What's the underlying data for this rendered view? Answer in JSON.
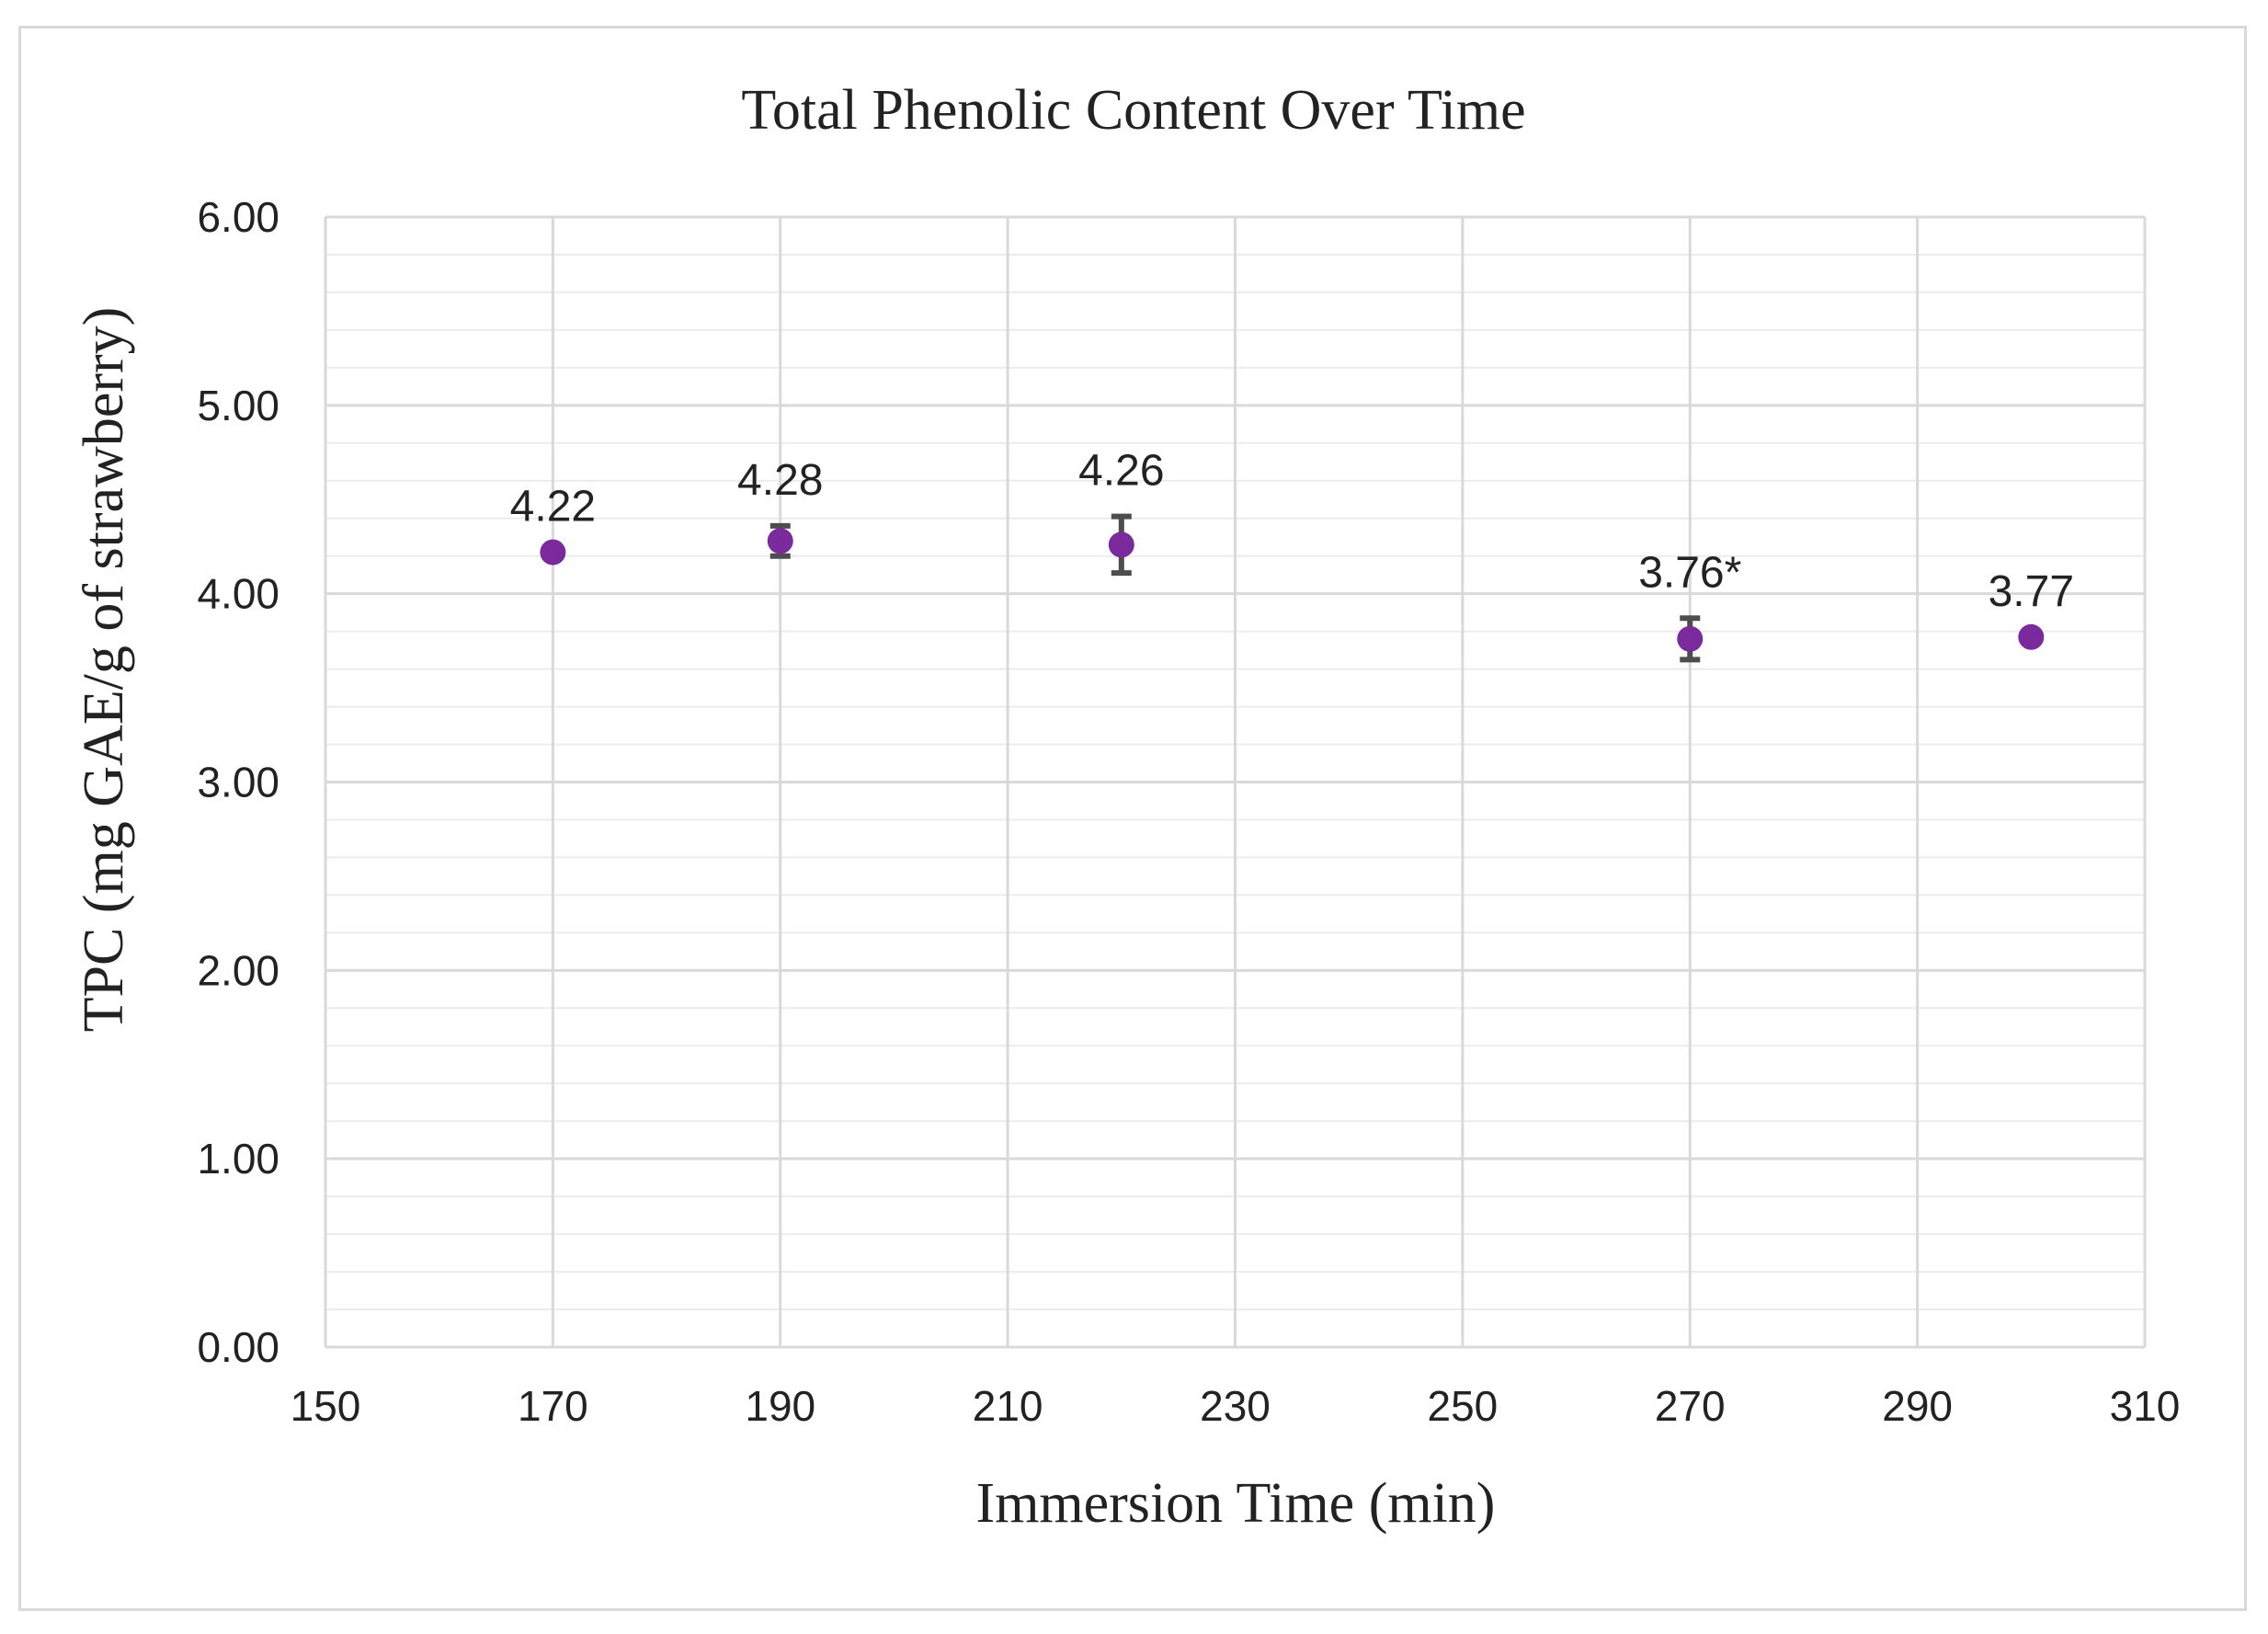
{
  "chart_data": {
    "type": "scatter",
    "title": "Total Phenolic Content Over Time",
    "xlabel": "Immersion Time (min)",
    "ylabel": "TPC (mg GAE/g of strawberry)",
    "xlim": [
      150,
      310
    ],
    "ylim": [
      0,
      6
    ],
    "x_ticks": [
      150,
      170,
      190,
      210,
      230,
      250,
      270,
      290,
      310
    ],
    "x_tick_labels": [
      "150",
      "170",
      "190",
      "210",
      "230",
      "250",
      "270",
      "290",
      "310"
    ],
    "y_ticks": [
      0,
      1,
      2,
      3,
      4,
      5,
      6
    ],
    "y_tick_labels": [
      "0.00",
      "1.00",
      "2.00",
      "3.00",
      "4.00",
      "5.00",
      "6.00"
    ],
    "grid": true,
    "minor_grid_y_step": 0.2,
    "marker_color": "#7b2a9e",
    "errorbar_color": "#4d4d4d",
    "grid_color": "#d9d9d9",
    "points": [
      {
        "x": 170,
        "y": 4.22,
        "error": 0.0,
        "label": "4.22"
      },
      {
        "x": 190,
        "y": 4.28,
        "error": 0.08,
        "label": "4.28"
      },
      {
        "x": 220,
        "y": 4.26,
        "error": 0.15,
        "label": "4.26"
      },
      {
        "x": 270,
        "y": 3.76,
        "error": 0.11,
        "label": "3.76*"
      },
      {
        "x": 300,
        "y": 3.77,
        "error": 0.0,
        "label": "3.77"
      }
    ]
  }
}
